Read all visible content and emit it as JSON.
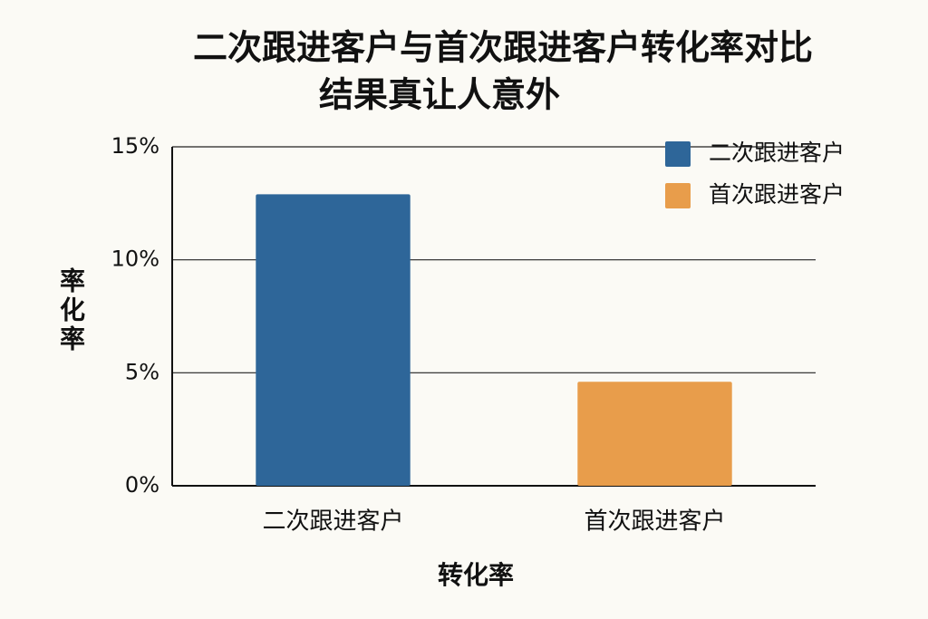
{
  "chart_data": {
    "type": "bar",
    "title": [
      "二次跟进客户与首次跟进客户转化率对比",
      "结果真让人意外"
    ],
    "categories": [
      "二次跟进客户",
      "首次跟进客户"
    ],
    "values": [
      12.9,
      4.6
    ],
    "colors": [
      "#2e6699",
      "#e89d4b"
    ],
    "x_label": "转化率",
    "y_label": "率化率",
    "ylim": [
      0,
      15
    ],
    "yticks": [
      {
        "value": 0,
        "label": "0%"
      },
      {
        "value": 5,
        "label": "5%"
      },
      {
        "value": 10,
        "label": "10%"
      },
      {
        "value": 15,
        "label": "15%"
      }
    ],
    "grid": true,
    "legend": "top-right"
  }
}
